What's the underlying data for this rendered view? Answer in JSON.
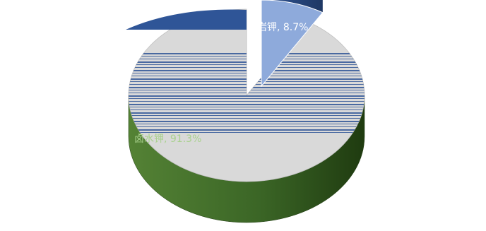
{
  "chart_data": {
    "type": "pie",
    "style": "3d-exploded",
    "categories": [
      "硬岩钾",
      "卤水钾"
    ],
    "values": [
      8.7,
      91.3
    ],
    "slice_labels": [
      "硬岩钾, 8.7%",
      "卤水钾, 91.3%"
    ],
    "unit": "%",
    "title": "",
    "legend": "none",
    "colors": {
      "hard_rock_top": "#8eaadb",
      "hard_rock_side": "#2f5597",
      "brine_top": "#d9d9d9",
      "brine_side_light": "#548235",
      "brine_side_dark": "#1f3b10",
      "brine_label": "#a9d18e",
      "hard_rock_label": "#ffffff",
      "band_color": "#2f5597"
    }
  }
}
